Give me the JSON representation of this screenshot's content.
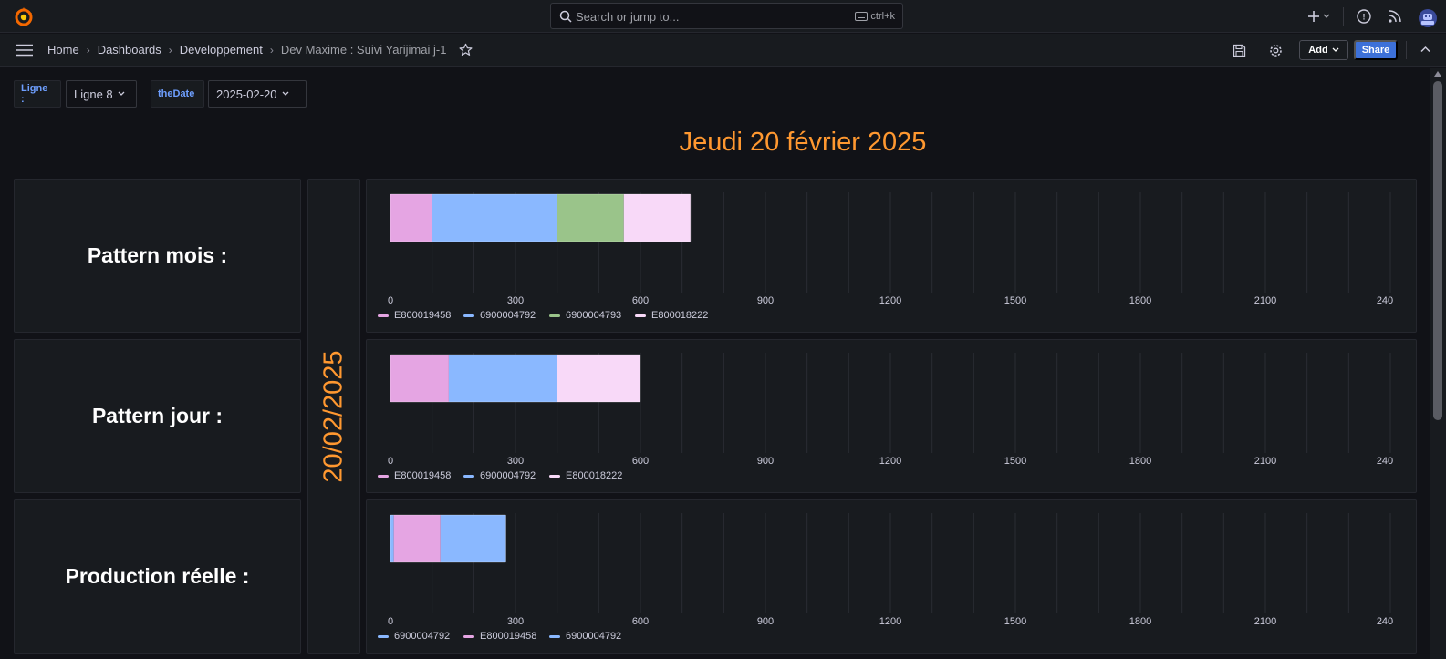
{
  "topbar": {
    "search_placeholder": "Search or jump to...",
    "search_shortcut": "ctrl+k"
  },
  "breadcrumb": [
    {
      "label": "Home"
    },
    {
      "label": "Dashboards"
    },
    {
      "label": "Developpement"
    },
    {
      "label": "Dev Maxime : Suivi Yarijimai j-1"
    }
  ],
  "toolbar": {
    "add_label": "Add",
    "share_label": "Share"
  },
  "variables": [
    {
      "label": "Ligne :",
      "value": "Ligne 8"
    },
    {
      "label": "theDate",
      "value": "2025-02-20"
    }
  ],
  "day_title": "Jeudi 20 février 2025",
  "date_vertical": "20/02/2025",
  "rows": [
    {
      "label": "Pattern mois :"
    },
    {
      "label": "Pattern jour :"
    },
    {
      "label": "Production réelle :"
    }
  ],
  "colors": {
    "pink": "#e5a5e3",
    "blue": "#8ab8ff",
    "green": "#9ac48a",
    "lightpink": "#f8d9f8",
    "title_orange": "#ff9830",
    "share_blue": "#3d71d9"
  },
  "chart_data": [
    {
      "type": "bar",
      "orientation": "horizontal-stacked",
      "xlim": [
        0,
        2400
      ],
      "ticks": [
        "0",
        "300",
        "600",
        "900",
        "1200",
        "1500",
        "1800",
        "2100",
        "240"
      ],
      "series": [
        {
          "name": "E800019458",
          "value": 100,
          "color": "#e5a5e3"
        },
        {
          "name": "6900004792",
          "value": 300,
          "color": "#8ab8ff"
        },
        {
          "name": "6900004793",
          "value": 160,
          "color": "#9ac48a"
        },
        {
          "name": "E800018222",
          "value": 160,
          "color": "#f8d9f8"
        }
      ]
    },
    {
      "type": "bar",
      "orientation": "horizontal-stacked",
      "xlim": [
        0,
        2400
      ],
      "ticks": [
        "0",
        "300",
        "600",
        "900",
        "1200",
        "1500",
        "1800",
        "2100",
        "240"
      ],
      "series": [
        {
          "name": "E800019458",
          "value": 140,
          "color": "#e5a5e3"
        },
        {
          "name": "6900004792",
          "value": 260,
          "color": "#8ab8ff"
        },
        {
          "name": "E800018222",
          "value": 200,
          "color": "#f8d9f8"
        }
      ]
    },
    {
      "type": "bar",
      "orientation": "horizontal-stacked",
      "xlim": [
        0,
        2400
      ],
      "ticks": [
        "0",
        "300",
        "600",
        "900",
        "1200",
        "1500",
        "1800",
        "2100",
        "240"
      ],
      "series": [
        {
          "name": "6900004792",
          "value": 8,
          "color": "#8ab8ff"
        },
        {
          "name": "E800019458",
          "value": 112,
          "color": "#e5a5e3"
        },
        {
          "name": "6900004792",
          "value": 157,
          "color": "#8ab8ff"
        }
      ]
    }
  ]
}
